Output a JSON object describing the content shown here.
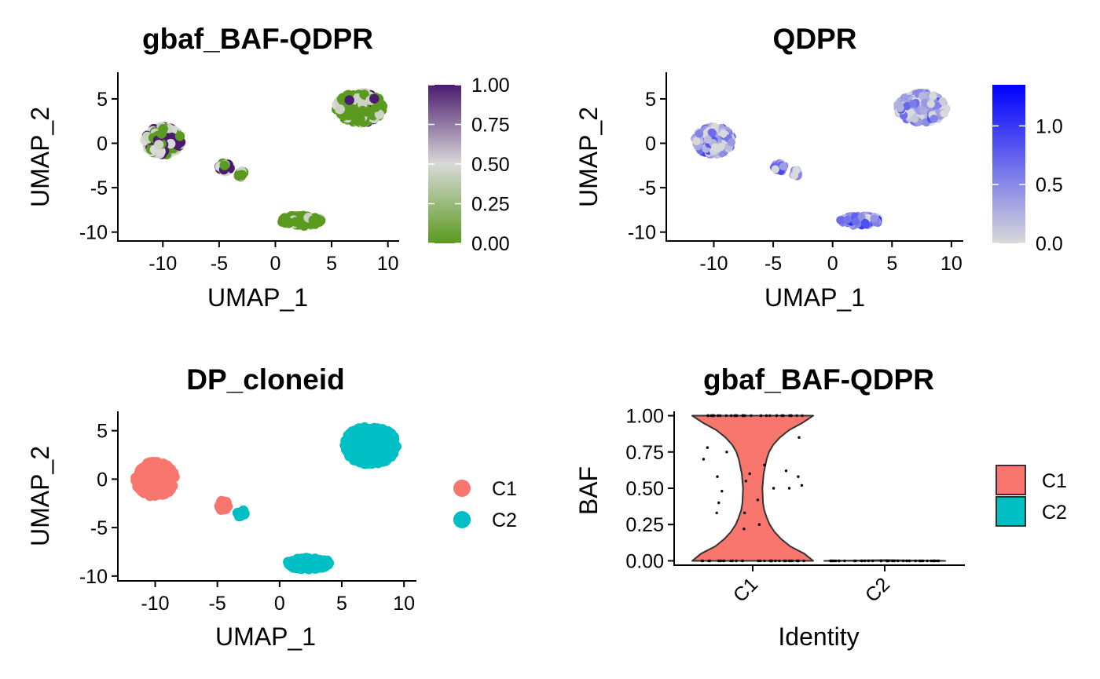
{
  "chart_data": [
    {
      "type": "scatter",
      "title": "gbaf_BAF-QDPR",
      "xlabel": "UMAP_1",
      "ylabel": "UMAP_2",
      "xlim": [
        -14,
        11
      ],
      "ylim": [
        -11,
        8
      ],
      "xticks": [
        "-10",
        "-5",
        "0",
        "5",
        "10"
      ],
      "yticks": [
        "5",
        "0",
        "-5",
        "-10"
      ],
      "color_by": "BAF",
      "colorbar": {
        "ticks": [
          "1.00",
          "0.75",
          "0.50",
          "0.25",
          "0.00"
        ],
        "range": [
          0,
          1
        ],
        "low_color": "#5A9A1E",
        "mid_color": "#D9D9D9",
        "high_color": "#4B1B6E"
      },
      "clusters": [
        {
          "center_x": -10.0,
          "center_y": 0.3,
          "n_points": 260,
          "spread_x": 1.6,
          "spread_y": 1.6,
          "mean_value": 0.5
        },
        {
          "center_x": -4.5,
          "center_y": -2.7,
          "n_points": 30,
          "spread_x": 0.5,
          "spread_y": 0.5,
          "mean_value": 0.5
        },
        {
          "center_x": -3.1,
          "center_y": -3.4,
          "n_points": 14,
          "spread_x": 0.3,
          "spread_y": 0.4,
          "mean_value": 0.0
        },
        {
          "center_x": 7.5,
          "center_y": 4.0,
          "n_points": 280,
          "spread_x": 2.1,
          "spread_y": 1.7,
          "mean_value": 0.15
        },
        {
          "center_x": 2.3,
          "center_y": -8.7,
          "n_points": 110,
          "spread_x": 1.8,
          "spread_y": 0.6,
          "mean_value": 0.0
        }
      ]
    },
    {
      "type": "scatter",
      "title": "QDPR",
      "xlabel": "UMAP_1",
      "ylabel": "UMAP_2",
      "xlim": [
        -14,
        11
      ],
      "ylim": [
        -11,
        8
      ],
      "xticks": [
        "-10",
        "-5",
        "0",
        "5",
        "10"
      ],
      "yticks": [
        "5",
        "0",
        "-5",
        "-10"
      ],
      "color_by": "expression",
      "colorbar": {
        "ticks": [
          "1.0",
          "0.5",
          "0.0"
        ],
        "range": [
          0,
          1.35
        ],
        "low_color": "#D9D9D9",
        "high_color": "#0000FF"
      },
      "clusters": [
        {
          "center_x": -10.0,
          "center_y": 0.3,
          "n_points": 260,
          "spread_x": 1.6,
          "spread_y": 1.6,
          "mean_value": 0.3
        },
        {
          "center_x": -4.5,
          "center_y": -2.7,
          "n_points": 30,
          "spread_x": 0.5,
          "spread_y": 0.5,
          "mean_value": 0.5
        },
        {
          "center_x": -3.1,
          "center_y": -3.4,
          "n_points": 14,
          "spread_x": 0.3,
          "spread_y": 0.4,
          "mean_value": 0.4
        },
        {
          "center_x": 7.5,
          "center_y": 4.0,
          "n_points": 280,
          "spread_x": 2.1,
          "spread_y": 1.7,
          "mean_value": 0.35
        },
        {
          "center_x": 2.3,
          "center_y": -8.7,
          "n_points": 110,
          "spread_x": 1.8,
          "spread_y": 0.6,
          "mean_value": 0.5
        }
      ]
    },
    {
      "type": "scatter",
      "title": "DP_cloneid",
      "xlabel": "UMAP_1",
      "ylabel": "UMAP_2",
      "xlim": [
        -13,
        11
      ],
      "ylim": [
        -10.5,
        7
      ],
      "xticks": [
        "-10",
        "-5",
        "0",
        "5",
        "10"
      ],
      "yticks": [
        "5",
        "0",
        "-5",
        "-10"
      ],
      "legend": [
        {
          "label": "C1",
          "color": "#F8766D"
        },
        {
          "label": "C2",
          "color": "#00BFC4"
        }
      ],
      "clusters": [
        {
          "center_x": -10.0,
          "center_y": 0.0,
          "n_points": 260,
          "spread_x": 1.6,
          "spread_y": 1.8,
          "group": "C1"
        },
        {
          "center_x": -4.5,
          "center_y": -2.7,
          "n_points": 30,
          "spread_x": 0.5,
          "spread_y": 0.5,
          "group": "C1"
        },
        {
          "center_x": -3.1,
          "center_y": -3.5,
          "n_points": 14,
          "spread_x": 0.3,
          "spread_y": 0.4,
          "group": "C2"
        },
        {
          "center_x": 7.3,
          "center_y": 3.5,
          "n_points": 280,
          "spread_x": 2.1,
          "spread_y": 2.0,
          "group": "C2"
        },
        {
          "center_x": 2.3,
          "center_y": -8.7,
          "n_points": 110,
          "spread_x": 1.8,
          "spread_y": 0.6,
          "group": "C2"
        }
      ]
    },
    {
      "type": "violin",
      "title": "gbaf_BAF-QDPR",
      "xlabel": "Identity",
      "ylabel": "BAF",
      "categories": [
        "C1",
        "C2"
      ],
      "ylim": [
        -0.03,
        1.03
      ],
      "yticks": [
        "1.00",
        "0.75",
        "0.50",
        "0.25",
        "0.00"
      ],
      "legend": [
        {
          "label": "C1",
          "color": "#F8766D"
        },
        {
          "label": "C2",
          "color": "#00BFC4"
        }
      ],
      "series": [
        {
          "name": "C1",
          "color": "#F8766D",
          "density_profile": [
            [
              0.0,
              1.0
            ],
            [
              0.05,
              0.85
            ],
            [
              0.1,
              0.62
            ],
            [
              0.15,
              0.47
            ],
            [
              0.2,
              0.36
            ],
            [
              0.25,
              0.28
            ],
            [
              0.3,
              0.23
            ],
            [
              0.35,
              0.19
            ],
            [
              0.4,
              0.17
            ],
            [
              0.5,
              0.16
            ],
            [
              0.6,
              0.18
            ],
            [
              0.7,
              0.23
            ],
            [
              0.75,
              0.27
            ],
            [
              0.8,
              0.34
            ],
            [
              0.85,
              0.45
            ],
            [
              0.9,
              0.6
            ],
            [
              0.95,
              0.82
            ],
            [
              1.0,
              1.0
            ]
          ],
          "points": [
            0,
            0,
            0,
            0,
            0,
            0,
            0,
            0,
            0,
            0,
            0,
            0,
            0,
            0,
            0,
            0,
            0,
            0,
            0,
            0,
            0,
            0,
            0,
            0,
            0,
            0,
            0,
            0,
            0,
            0,
            1,
            1,
            1,
            1,
            1,
            1,
            1,
            1,
            1,
            1,
            1,
            1,
            1,
            1,
            1,
            1,
            1,
            1,
            1,
            1,
            1,
            1,
            1,
            1,
            1,
            1,
            1,
            1,
            1,
            1,
            0.22,
            0.25,
            0.33,
            0.4,
            0.42,
            0.5,
            0.5,
            0.52,
            0.55,
            0.58,
            0.6,
            0.62,
            0.66,
            0.7,
            0.75,
            0.78,
            0.85,
            0.33,
            0.48,
            0.58
          ]
        },
        {
          "name": "C2",
          "color": "#00BFC4",
          "density_profile": [
            [
              0.0,
              1.0
            ],
            [
              0.005,
              0.0
            ]
          ],
          "points": [
            0,
            0,
            0,
            0,
            0,
            0,
            0,
            0,
            0,
            0,
            0,
            0,
            0,
            0,
            0,
            0,
            0,
            0,
            0,
            0,
            0,
            0,
            0,
            0,
            0,
            0,
            0,
            0,
            0,
            0,
            0,
            0,
            0,
            0,
            0,
            0,
            0,
            0,
            0,
            0
          ]
        }
      ]
    }
  ]
}
